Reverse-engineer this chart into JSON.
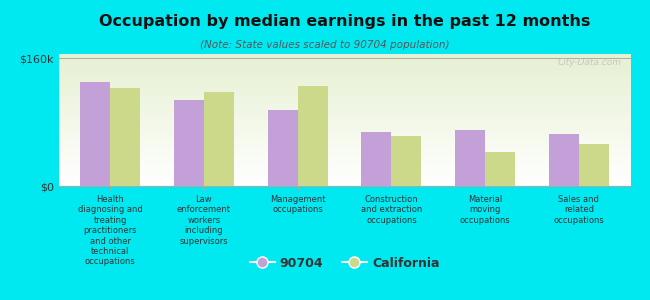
{
  "title": "Occupation by median earnings in the past 12 months",
  "subtitle": "(Note: State values scaled to 90704 population)",
  "categories": [
    "Health\ndiagnosing and\ntreating\npractitioners\nand other\ntechnical\noccupations",
    "Law\nenforcement\nworkers\nincluding\nsupervisors",
    "Management\noccupations",
    "Construction\nand extraction\noccupations",
    "Material\nmoving\noccupations",
    "Sales and\nrelated\noccupations"
  ],
  "values_90704": [
    130000,
    108000,
    95000,
    68000,
    70000,
    65000
  ],
  "values_california": [
    122000,
    118000,
    125000,
    62000,
    42000,
    52000
  ],
  "color_90704": "#c4a0d8",
  "color_california": "#ccd98a",
  "background_color": "#00e8f0",
  "ytick_label": "$160k",
  "y0_label": "$0",
  "ylim": [
    0,
    165000
  ],
  "yticks": [
    0,
    160000
  ],
  "legend_90704": "90704",
  "legend_california": "California",
  "watermark": "City-Data.com"
}
